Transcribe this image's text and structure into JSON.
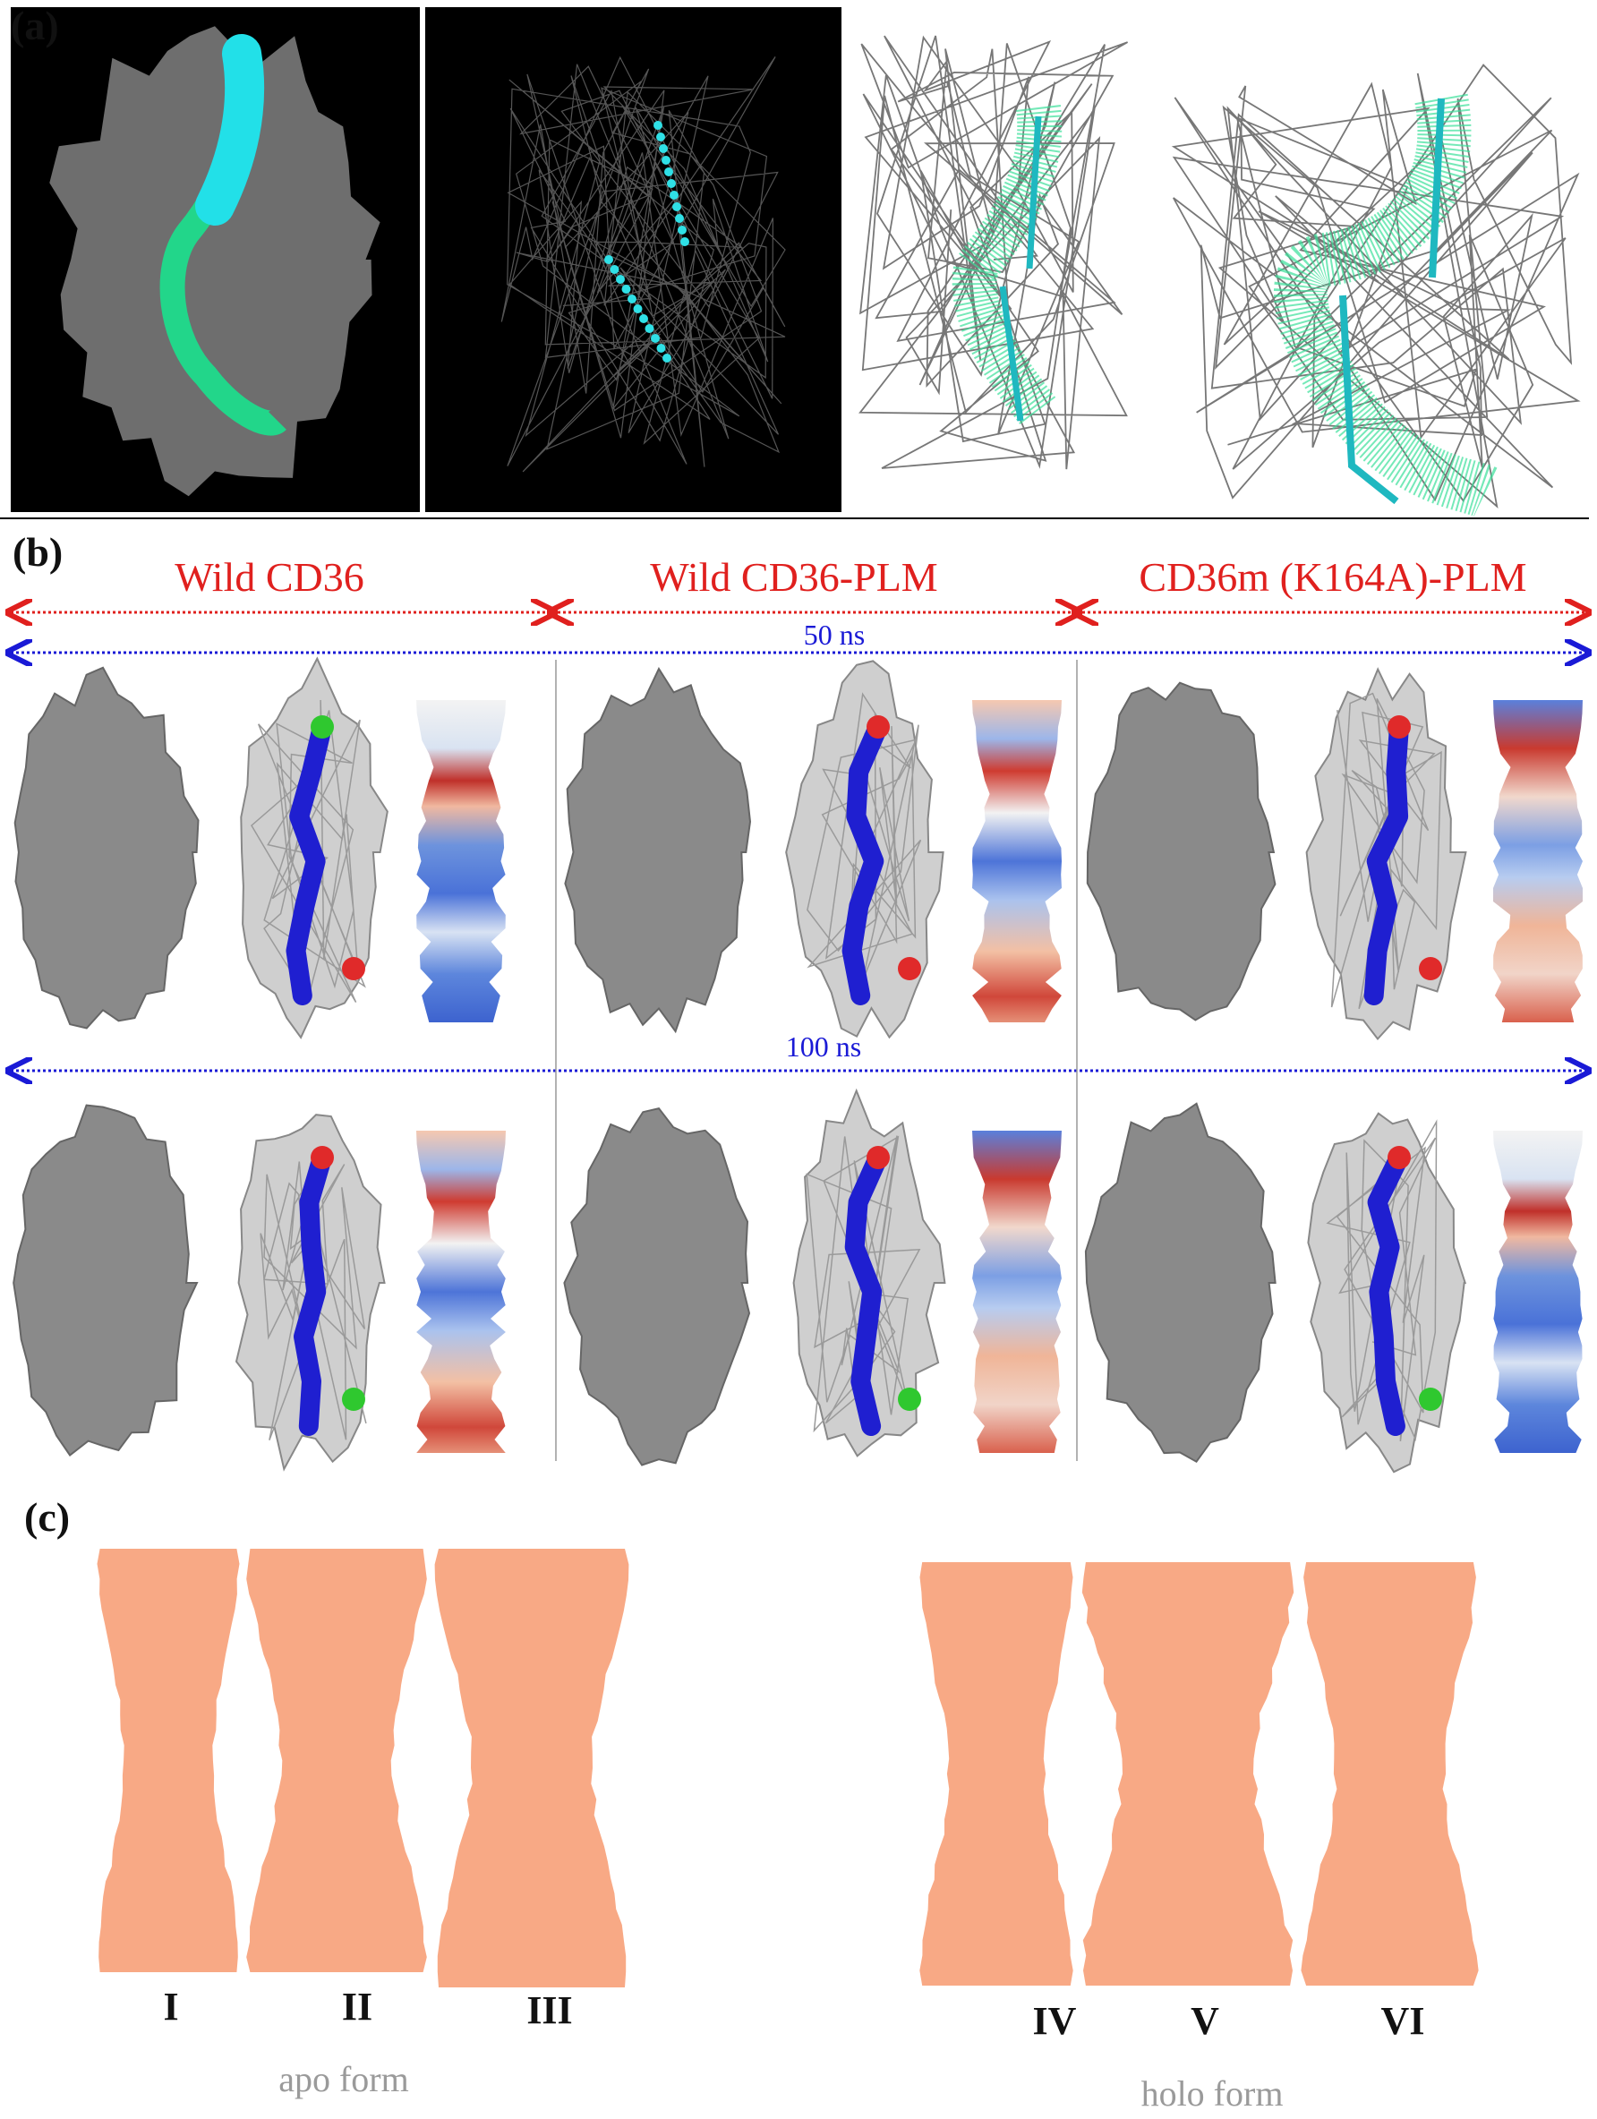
{
  "panels": {
    "a": {
      "label": "(a)"
    },
    "b": {
      "label": "(b)",
      "columns": [
        "Wild CD36",
        "Wild CD36-PLM",
        "CD36m (K164A)-PLM"
      ],
      "rows": [
        "50 ns",
        "100 ns"
      ]
    },
    "c": {
      "label": "(c)",
      "profiles": [
        "I",
        "II",
        "III",
        "IV",
        "V",
        "VI"
      ],
      "groups": [
        "apo form",
        "holo form"
      ]
    }
  }
}
